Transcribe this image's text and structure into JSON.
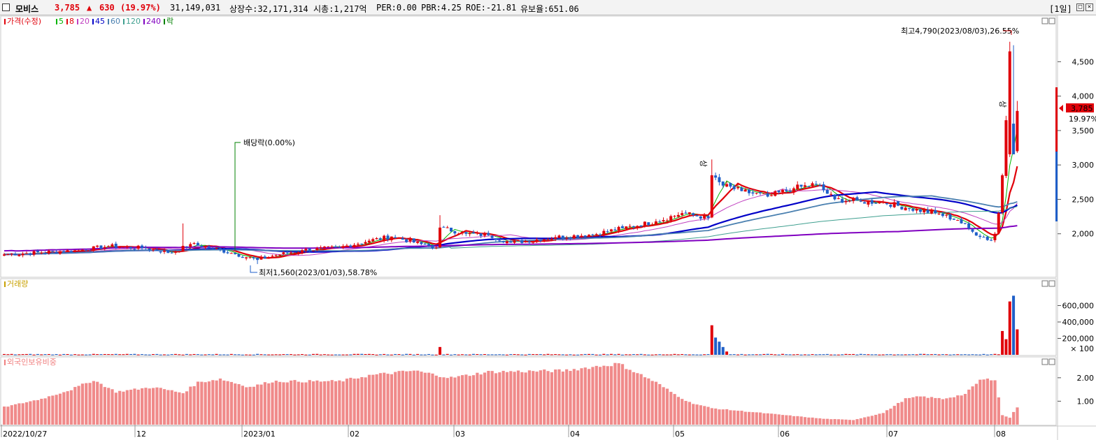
{
  "header": {
    "name": "모비스",
    "price": "3,785",
    "arrow": "▲",
    "change": "630",
    "change_pct": "(19.97%)",
    "volume": "31,149,031",
    "shares": "상장수:32,171,314",
    "market_cap": "시총:1,217억",
    "per": "PER:0.00",
    "pbr": "PBR:4.25",
    "roe": "ROE:-21.81",
    "reserve": "유보율:651.06",
    "period": "[1일]",
    "colors": {
      "up": "#e0000a",
      "down": "#1f5fc8"
    }
  },
  "chart_data": [
    {
      "panel": "price",
      "type": "candlestick",
      "legend": [
        {
          "label": "가격(수정)",
          "color": "#e0000a"
        },
        {
          "label": "5",
          "color": "#00b400"
        },
        {
          "label": "8",
          "color": "#e0000a"
        },
        {
          "label": "20",
          "color": "#c040c0"
        },
        {
          "label": "45",
          "color": "#0000c8"
        },
        {
          "label": "60",
          "color": "#4a80b0"
        },
        {
          "label": "120",
          "color": "#40a090"
        },
        {
          "label": "240",
          "color": "#8000c0"
        },
        {
          "label": "락",
          "color": "#008000"
        }
      ],
      "y_ticks": [
        "4,500",
        "4,000",
        "3,500",
        "3,000",
        "2,500",
        "2,000"
      ],
      "ylim": [
        1500,
        4950
      ],
      "current_price": "3,785",
      "current_pct": "19.97%",
      "annotations": {
        "high": "최고4,790(2023/08/03),26.55%",
        "low": "최저1,560(2023/01/03),58.78%",
        "dividend": "배당락(0.00%)",
        "limit_up": "상"
      },
      "keyframes": [
        {
          "i": 0,
          "c": 1700
        },
        {
          "i": 20,
          "c": 1760
        },
        {
          "i": 28,
          "c": 1820
        },
        {
          "i": 38,
          "c": 1790
        },
        {
          "i": 45,
          "c": 1720
        },
        {
          "i": 50,
          "c": 1850
        },
        {
          "i": 56,
          "c": 1790
        },
        {
          "i": 61,
          "c": 1720
        },
        {
          "i": 68,
          "c": 1620
        },
        {
          "i": 72,
          "c": 1680
        },
        {
          "i": 80,
          "c": 1760
        },
        {
          "i": 90,
          "c": 1800
        },
        {
          "i": 98,
          "c": 1900
        },
        {
          "i": 104,
          "c": 1960
        },
        {
          "i": 112,
          "c": 1850
        },
        {
          "i": 116,
          "c": 1800
        },
        {
          "i": 117,
          "c": 2090
        },
        {
          "i": 124,
          "c": 2000
        },
        {
          "i": 130,
          "c": 1980
        },
        {
          "i": 136,
          "c": 1870
        },
        {
          "i": 148,
          "c": 1950
        },
        {
          "i": 158,
          "c": 1990
        },
        {
          "i": 166,
          "c": 2080
        },
        {
          "i": 175,
          "c": 2180
        },
        {
          "i": 182,
          "c": 2300
        },
        {
          "i": 189,
          "c": 2230
        },
        {
          "i": 190,
          "c": 2850
        },
        {
          "i": 193,
          "c": 2700
        },
        {
          "i": 198,
          "c": 2620
        },
        {
          "i": 205,
          "c": 2540
        },
        {
          "i": 212,
          "c": 2660
        },
        {
          "i": 218,
          "c": 2720
        },
        {
          "i": 223,
          "c": 2500
        },
        {
          "i": 230,
          "c": 2470
        },
        {
          "i": 236,
          "c": 2460
        },
        {
          "i": 242,
          "c": 2380
        },
        {
          "i": 250,
          "c": 2300
        },
        {
          "i": 256,
          "c": 2200
        },
        {
          "i": 260,
          "c": 2030
        },
        {
          "i": 265,
          "c": 1900
        },
        {
          "i": 266,
          "c": 2000
        },
        {
          "i": 267,
          "c": 2300
        },
        {
          "i": 268,
          "c": 2850
        },
        {
          "i": 269,
          "c": 3650
        },
        {
          "i": 270,
          "c": 4200
        },
        {
          "i": 271,
          "c": 3155
        },
        {
          "i": 272,
          "c": 3785
        }
      ],
      "moving_averages": [
        {
          "period": 5,
          "color": "#00b400",
          "width": 1
        },
        {
          "period": 8,
          "color": "#e0000a",
          "width": 2.2
        },
        {
          "period": 20,
          "color": "#c040c0",
          "width": 1
        },
        {
          "period": 45,
          "color": "#0000c8",
          "width": 2.2
        },
        {
          "period": 60,
          "color": "#4a80b0",
          "width": 1.8
        },
        {
          "period": 120,
          "color": "#40a090",
          "width": 1
        },
        {
          "period": 240,
          "color": "#8000c0",
          "width": 2
        }
      ]
    },
    {
      "panel": "volume",
      "type": "bar",
      "legend": [
        {
          "label": "거래량",
          "color": "#c8a000"
        }
      ],
      "y_ticks": [
        "600,000",
        "400,000",
        "200,000"
      ],
      "unit": "× 100",
      "ylim": [
        0,
        800000
      ],
      "spikes": [
        {
          "i": 117,
          "v": 95000
        },
        {
          "i": 190,
          "v": 360000
        },
        {
          "i": 191,
          "v": 210000
        },
        {
          "i": 192,
          "v": 160000
        },
        {
          "i": 193,
          "v": 95000
        },
        {
          "i": 194,
          "v": 40000
        },
        {
          "i": 268,
          "v": 290000
        },
        {
          "i": 269,
          "v": 190000
        },
        {
          "i": 270,
          "v": 650000
        },
        {
          "i": 271,
          "v": 720000
        },
        {
          "i": 272,
          "v": 310000
        }
      ]
    },
    {
      "panel": "foreign_ratio",
      "type": "bar",
      "legend": [
        {
          "label": "외국인보유비중",
          "color": "#f08080"
        }
      ],
      "y_ticks": [
        "2.00",
        "1.00"
      ],
      "ylim": [
        0,
        2.8
      ],
      "keyframes": [
        {
          "i": 0,
          "v": 0.75
        },
        {
          "i": 10,
          "v": 1.1
        },
        {
          "i": 18,
          "v": 1.5
        },
        {
          "i": 24,
          "v": 1.9
        },
        {
          "i": 30,
          "v": 1.4
        },
        {
          "i": 40,
          "v": 1.6
        },
        {
          "i": 48,
          "v": 1.35
        },
        {
          "i": 52,
          "v": 1.8
        },
        {
          "i": 58,
          "v": 1.95
        },
        {
          "i": 66,
          "v": 1.6
        },
        {
          "i": 72,
          "v": 1.85
        },
        {
          "i": 90,
          "v": 1.85
        },
        {
          "i": 98,
          "v": 2.1
        },
        {
          "i": 110,
          "v": 2.3
        },
        {
          "i": 120,
          "v": 2.0
        },
        {
          "i": 130,
          "v": 2.25
        },
        {
          "i": 150,
          "v": 2.3
        },
        {
          "i": 165,
          "v": 2.6
        },
        {
          "i": 175,
          "v": 1.8
        },
        {
          "i": 180,
          "v": 1.3
        },
        {
          "i": 184,
          "v": 0.95
        },
        {
          "i": 190,
          "v": 0.7
        },
        {
          "i": 200,
          "v": 0.55
        },
        {
          "i": 210,
          "v": 0.4
        },
        {
          "i": 220,
          "v": 0.25
        },
        {
          "i": 228,
          "v": 0.2
        },
        {
          "i": 236,
          "v": 0.5
        },
        {
          "i": 242,
          "v": 1.1
        },
        {
          "i": 246,
          "v": 1.2
        },
        {
          "i": 252,
          "v": 1.1
        },
        {
          "i": 258,
          "v": 1.3
        },
        {
          "i": 262,
          "v": 1.9
        },
        {
          "i": 266,
          "v": 1.95
        },
        {
          "i": 268,
          "v": 0.4
        },
        {
          "i": 270,
          "v": 0.3
        },
        {
          "i": 272,
          "v": 0.75
        }
      ]
    }
  ],
  "x_axis": {
    "labels": [
      {
        "i": 0,
        "text": "2022/10/27"
      },
      {
        "i": 27,
        "text": "12"
      },
      {
        "i": 50,
        "text": "2023/01"
      },
      {
        "i": 70,
        "text": "02"
      },
      {
        "i": 91,
        "text": "03"
      },
      {
        "i": 113,
        "text": "04"
      },
      {
        "i": 134,
        "text": "05"
      },
      {
        "i": 155,
        "text": "06"
      },
      {
        "i": 176,
        "text": "07"
      },
      {
        "i": 197,
        "text": "08"
      }
    ]
  }
}
